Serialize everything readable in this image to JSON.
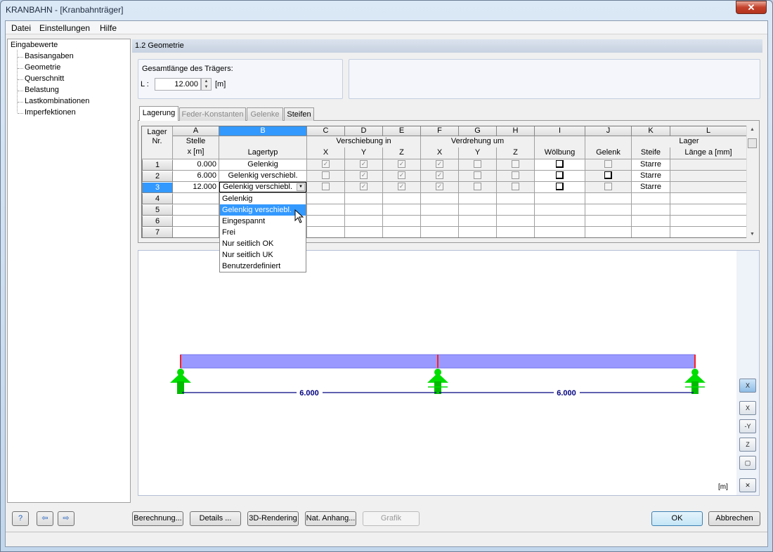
{
  "window": {
    "title": "KRANBAHN - [Kranbahnträger]",
    "close": "✕"
  },
  "menu": [
    "Datei",
    "Einstellungen",
    "Hilfe"
  ],
  "tree": {
    "root": "Eingabewerte",
    "items": [
      "Basisangaben",
      "Geometrie",
      "Querschnitt",
      "Belastung",
      "Lastkombinationen",
      "Imperfektionen"
    ]
  },
  "section": {
    "title": "1.2 Geometrie"
  },
  "length": {
    "label": "Gesamtlänge des Trägers:",
    "symbol": "L :",
    "value": "12.000",
    "unit": "[m]"
  },
  "tabs": [
    {
      "label": "Lagerung",
      "active": true
    },
    {
      "label": "Feder-Konstanten",
      "enabled": false
    },
    {
      "label": "Gelenke",
      "enabled": false
    },
    {
      "label": "Steifen",
      "enabled": true
    }
  ],
  "table": {
    "col_letters": [
      "A",
      "B",
      "C",
      "D",
      "E",
      "F",
      "G",
      "H",
      "I",
      "J",
      "K",
      "L"
    ],
    "nr_header": [
      "Lager",
      "Nr."
    ],
    "headers": {
      "A": [
        "Stelle",
        "x [m]"
      ],
      "B": "Lagertyp",
      "CDE": "Verschiebung in",
      "FGH": "Verdrehung um",
      "sub": [
        "X",
        "Y",
        "Z",
        "X",
        "Y",
        "Z"
      ],
      "I": "Wölbung",
      "J": "Gelenk",
      "KL": "Lager",
      "K": "Steife",
      "L": "Länge a [mm]"
    },
    "rows": [
      {
        "nr": "1",
        "x": "0.000",
        "typ": "Gelenkig",
        "C": true,
        "D": true,
        "E": true,
        "F": true,
        "G": false,
        "H": false,
        "I": false,
        "J": false,
        "K": "Starre",
        "L": ""
      },
      {
        "nr": "2",
        "x": "6.000",
        "typ": "Gelenkig verschiebl.",
        "C": false,
        "D": true,
        "E": true,
        "F": true,
        "G": false,
        "H": false,
        "I": false,
        "J": false,
        "K": "Starre",
        "L": ""
      },
      {
        "nr": "3",
        "x": "12.000",
        "typ": "Gelenkig verschiebl.",
        "C": false,
        "D": true,
        "E": true,
        "F": true,
        "G": false,
        "H": false,
        "I": false,
        "J": false,
        "K": "Starre",
        "L": ""
      },
      {
        "nr": "4"
      },
      {
        "nr": "5"
      },
      {
        "nr": "6"
      },
      {
        "nr": "7"
      }
    ],
    "selected_row": "3",
    "selected_col": "B"
  },
  "dropdown": {
    "value": "Gelenkig verschiebl.",
    "options": [
      "Gelenkig",
      "Gelenkig verschiebl.",
      "Eingespannt",
      "Frei",
      "Nur seitlich OK",
      "Nur seitlich UK",
      "Benutzerdefiniert"
    ],
    "highlighted": "Gelenkig verschiebl."
  },
  "graphic": {
    "dims": [
      "6.000",
      "6.000"
    ],
    "unit": "[m]",
    "beam_color": "#9999ff",
    "support_color": "#00dd00"
  },
  "toolbar": [
    {
      "icon": "view-x-icon",
      "label": "X"
    },
    {
      "icon": "axis-x-icon",
      "label": "X"
    },
    {
      "icon": "axis-y-icon",
      "label": "-Y"
    },
    {
      "icon": "axis-z-icon",
      "label": "Z"
    },
    {
      "icon": "iso-view-icon",
      "label": ""
    },
    {
      "icon": "zoom-all-icon",
      "label": ""
    }
  ],
  "buttons": {
    "calc": "Berechnung...",
    "details": "Details ...",
    "render": "3D-Rendering",
    "annex": "Nat. Anhang...",
    "grafik": "Grafik",
    "ok": "OK",
    "cancel": "Abbrechen"
  }
}
